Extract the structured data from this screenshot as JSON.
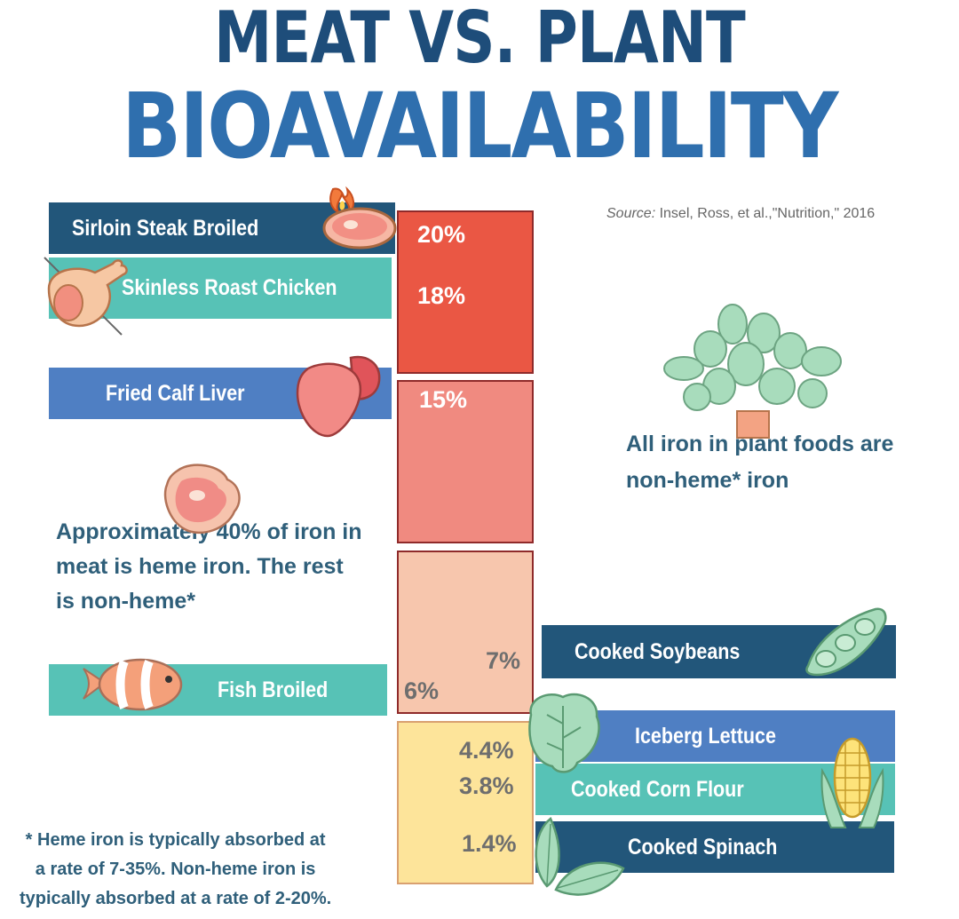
{
  "title_line1": "MEAT VS. PLANT",
  "title_line2": "BIOAVAILABILITY",
  "source_label": "Source:",
  "source_text": " Insel, Ross, et al.,\"Nutrition,\" 2016",
  "chart_data": {
    "type": "bar",
    "categories": [
      "Sirloin Steak Broiled",
      "Skinless Roast Chicken",
      "Fried Calf Liver",
      "Fish Broiled",
      "Cooked Soybeans",
      "Iceberg Lettuce",
      "Cooked Corn Flour",
      "Cooked Spinach"
    ],
    "values": [
      20,
      18,
      15,
      6,
      7,
      4.4,
      3.8,
      1.4
    ],
    "value_labels": [
      "20%",
      "18%",
      "15%",
      "6%",
      "7%",
      "4.4%",
      "3.8%",
      "1.4%"
    ],
    "groups": {
      "meat": [
        "Sirloin Steak Broiled",
        "Skinless Roast Chicken",
        "Fried Calf Liver",
        "Fish Broiled"
      ],
      "plant": [
        "Cooked Soybeans",
        "Iceberg Lettuce",
        "Cooked Corn Flour",
        "Cooked Spinach"
      ]
    },
    "title": "MEAT VS. PLANT BIOAVAILABILITY",
    "xlabel": "",
    "ylabel": ""
  },
  "notes": {
    "plant": [
      "All iron in plant foods are",
      "non-heme* iron"
    ],
    "meat": [
      "Approximately 40% of iron in",
      "meat is heme iron. The rest",
      "is non-heme*"
    ],
    "footnote": [
      "* Heme iron is typically absorbed at",
      "a rate of 7-35%. Non-heme iron is",
      "typically absorbed at a rate of 2-20%."
    ]
  },
  "colors": {
    "title_dark": "#1e4d7a",
    "title_blue": "#2f6fae",
    "bar_dark": "#22567a",
    "bar_teal": "#57c2b6",
    "bar_blue": "#4f7fc3",
    "block_red": "#ea5744",
    "block_salmon": "#f08a80",
    "block_peach": "#f7c6ad",
    "block_yellow": "#fde49a",
    "note_text": "#2f5f7a"
  },
  "icons": [
    "steak-fire-icon",
    "chicken-leg-icon",
    "liver-icon",
    "steak-icon",
    "fish-icon",
    "plant-pot-icon",
    "soybean-pod-icon",
    "lettuce-icon",
    "corn-icon",
    "spinach-leaf-icon"
  ]
}
